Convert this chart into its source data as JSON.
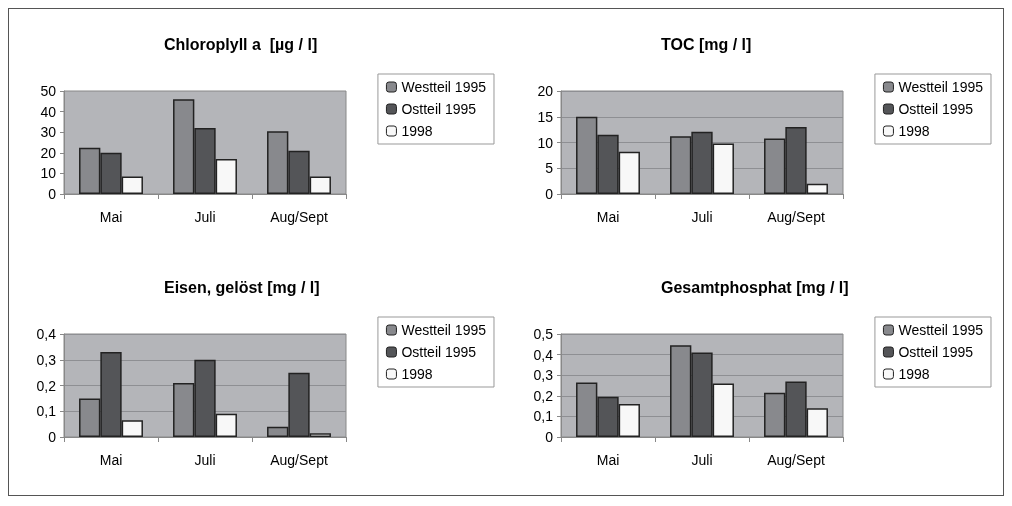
{
  "chart_data": [
    {
      "type": "bar",
      "title": "Chloroplyll a  [µg / l]",
      "categories": [
        "Mai",
        "Juli",
        "Aug/Sept"
      ],
      "series": [
        {
          "name": "Westteil 1995",
          "color": "#88898d",
          "values": [
            22.5,
            46,
            30.5
          ]
        },
        {
          "name": "Ostteil 1995",
          "color": "#545558",
          "values": [
            20,
            32,
            21
          ]
        },
        {
          "name": "1998",
          "color": "#f8f8f8",
          "values": [
            8.5,
            17,
            8.5
          ]
        }
      ],
      "ylim": [
        0,
        50
      ],
      "yticks": [
        0,
        10,
        20,
        30,
        40,
        50
      ],
      "grid": false,
      "legend": "right"
    },
    {
      "type": "bar",
      "title": "TOC [mg / l]",
      "categories": [
        "Mai",
        "Juli",
        "Aug/Sept"
      ],
      "series": [
        {
          "name": "Westteil 1995",
          "color": "#88898d",
          "values": [
            15,
            11.2,
            10.8
          ]
        },
        {
          "name": "Ostteil 1995",
          "color": "#545558",
          "values": [
            11.5,
            12.1,
            13
          ]
        },
        {
          "name": "1998",
          "color": "#f8f8f8",
          "values": [
            8.2,
            9.8,
            2
          ]
        }
      ],
      "ylim": [
        0,
        20
      ],
      "yticks": [
        0,
        5,
        10,
        15,
        20
      ],
      "grid": "y",
      "legend": "right"
    },
    {
      "type": "bar",
      "title": "Eisen, gelöst [mg / l]",
      "categories": [
        "Mai",
        "Juli",
        "Aug/Sept"
      ],
      "series": [
        {
          "name": "Westteil 1995",
          "color": "#88898d",
          "values": [
            0.15,
            0.21,
            0.04
          ]
        },
        {
          "name": "Ostteil 1995",
          "color": "#545558",
          "values": [
            0.33,
            0.3,
            0.25
          ]
        },
        {
          "name": "1998",
          "color": "#f8f8f8",
          "values": [
            0.065,
            0.09,
            0.015
          ]
        }
      ],
      "ylim": [
        0,
        0.4
      ],
      "yticks": [
        0,
        {
          "value": 0.1,
          "label": "0,1"
        },
        {
          "value": 0.2,
          "label": "0,2"
        },
        {
          "value": 0.3,
          "label": "0,3"
        },
        {
          "value": 0.4,
          "label": "0,4"
        }
      ],
      "grid": "y",
      "legend": "right"
    },
    {
      "type": "bar",
      "title": "Gesamtphosphat [mg / l]",
      "categories": [
        "Mai",
        "Juli",
        "Aug/Sept"
      ],
      "series": [
        {
          "name": "Westteil 1995",
          "color": "#88898d",
          "values": [
            0.265,
            0.445,
            0.215
          ]
        },
        {
          "name": "Ostteil 1995",
          "color": "#545558",
          "values": [
            0.195,
            0.41,
            0.27
          ]
        },
        {
          "name": "1998",
          "color": "#f8f8f8",
          "values": [
            0.16,
            0.26,
            0.14
          ]
        }
      ],
      "ylim": [
        0,
        0.5
      ],
      "yticks": [
        0,
        {
          "value": 0.1,
          "label": "0,1"
        },
        {
          "value": 0.2,
          "label": "0,2"
        },
        {
          "value": 0.3,
          "label": "0,3"
        },
        {
          "value": 0.4,
          "label": "0,4"
        },
        {
          "value": 0.5,
          "label": "0,5"
        }
      ],
      "grid": "y",
      "legend": "right"
    }
  ]
}
